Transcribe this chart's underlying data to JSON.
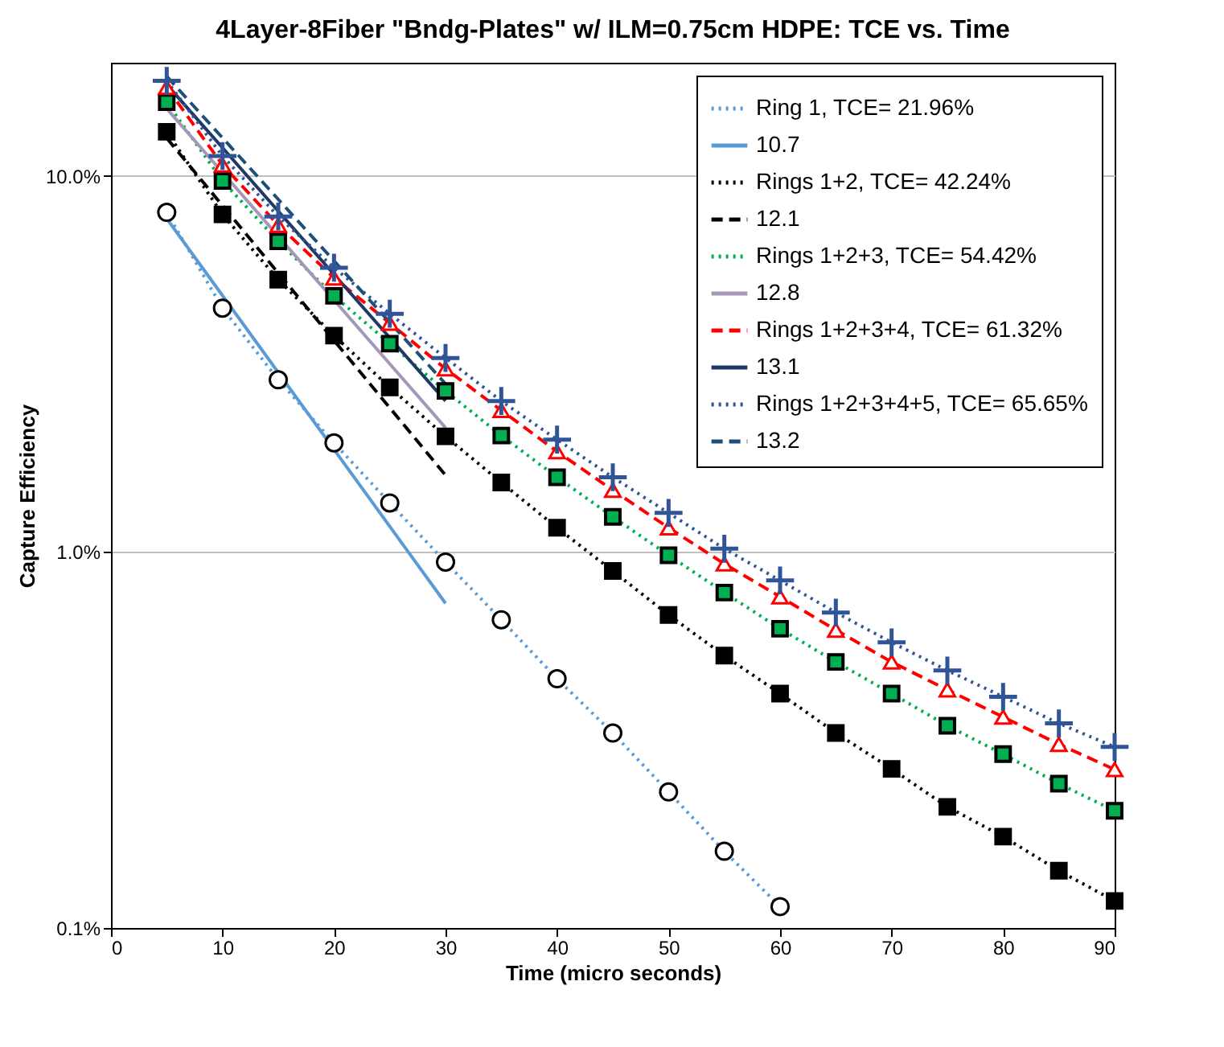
{
  "chart_data": {
    "type": "line",
    "title": "4Layer-8Fiber \"Bndg-Plates\"  w/ ILM=0.75cm HDPE: TCE vs. Time",
    "xlabel": "Time (micro seconds)",
    "ylabel": "Capture Efficiency",
    "x": [
      5,
      10,
      15,
      20,
      25,
      30,
      35,
      40,
      45,
      50,
      55,
      60,
      65,
      70,
      75,
      80,
      85,
      90
    ],
    "series": [
      {
        "name": "Ring 1, TCE= 21.96%",
        "color": "#5b9bd5",
        "marker": "circle",
        "line_style": "dotted",
        "x": [
          5,
          10,
          15,
          20,
          25,
          30,
          35,
          40,
          45,
          50,
          55,
          60
        ],
        "values": [
          8.0,
          4.45,
          2.87,
          1.95,
          1.35,
          0.94,
          0.66,
          0.46,
          0.33,
          0.23,
          0.16,
          0.114
        ]
      },
      {
        "name": "10.7",
        "color": "#5b9bd5",
        "marker": "none",
        "line_style": "solid",
        "x": [
          5,
          30
        ],
        "values": [
          7.7,
          0.73
        ]
      },
      {
        "name": "Rings 1+2, TCE= 42.24%",
        "color": "#000000",
        "marker": "square",
        "line_style": "dotted",
        "values": [
          13.1,
          7.9,
          5.3,
          3.76,
          2.74,
          2.03,
          1.53,
          1.16,
          0.89,
          0.68,
          0.53,
          0.42,
          0.33,
          0.265,
          0.21,
          0.175,
          0.142,
          0.118
        ]
      },
      {
        "name": "12.1",
        "color": "#000000",
        "marker": "none",
        "line_style": "dashed",
        "x": [
          5,
          30
        ],
        "values": [
          12.6,
          1.6
        ]
      },
      {
        "name": "Rings 1+2+3, TCE= 54.42%",
        "color": "#00b050",
        "marker": "square",
        "line_style": "dotted",
        "values": [
          15.7,
          9.7,
          6.7,
          4.8,
          3.58,
          2.68,
          2.04,
          1.58,
          1.24,
          0.98,
          0.78,
          0.625,
          0.51,
          0.42,
          0.345,
          0.29,
          0.242,
          0.205
        ]
      },
      {
        "name": "12.8",
        "color": "#a597b8",
        "marker": "none",
        "line_style": "solid",
        "x": [
          5,
          30
        ],
        "values": [
          15.1,
          2.14
        ]
      },
      {
        "name": "Rings 1+2+3+4, TCE= 61.32%",
        "color": "#ff0000",
        "marker": "triangle",
        "line_style": "dashed",
        "values": [
          17.2,
          10.7,
          7.4,
          5.36,
          4.06,
          3.07,
          2.38,
          1.85,
          1.46,
          1.16,
          0.93,
          0.76,
          0.62,
          0.51,
          0.43,
          0.364,
          0.308,
          0.264
        ]
      },
      {
        "name": "13.1",
        "color": "#203864",
        "marker": "none",
        "line_style": "solid",
        "x": [
          5,
          30
        ],
        "values": [
          17.5,
          2.52
        ]
      },
      {
        "name": "Rings 1+2+3+4+5, TCE= 65.65%",
        "color": "#2f5597",
        "marker": "cross",
        "line_style": "dotted",
        "values": [
          17.9,
          11.3,
          7.8,
          5.7,
          4.3,
          3.28,
          2.52,
          1.99,
          1.58,
          1.27,
          1.02,
          0.84,
          0.69,
          0.575,
          0.484,
          0.412,
          0.35,
          0.303
        ]
      },
      {
        "name": "13.2",
        "color": "#1f4e79",
        "marker": "none",
        "line_style": "dashed",
        "x": [
          5,
          30
        ],
        "values": [
          18.4,
          2.8
        ]
      }
    ],
    "xlim": [
      0,
      90
    ],
    "xticks": [
      0,
      10,
      20,
      30,
      40,
      50,
      60,
      70,
      80,
      90
    ],
    "ylim": [
      0.1,
      20
    ],
    "yticks": [
      {
        "value": 0.1,
        "label": "0.1%"
      },
      {
        "value": 1,
        "label": "1.0%"
      },
      {
        "value": 10,
        "label": "10.0%"
      }
    ],
    "log": "y",
    "grid": "y",
    "legend": "top right"
  }
}
